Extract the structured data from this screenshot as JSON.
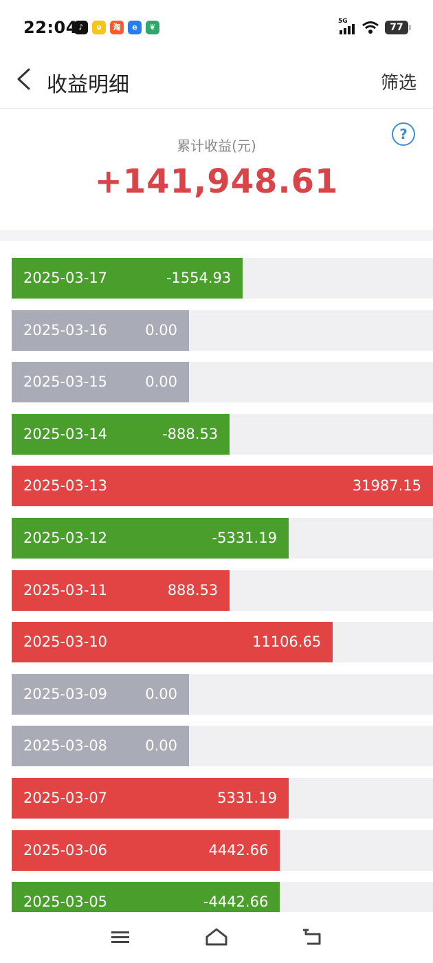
{
  "status_bar": {
    "time": "22:04",
    "network": "5G",
    "battery": "77",
    "app_icons": [
      {
        "name": "tiktok-icon",
        "color": "#111111",
        "glyph": "♪"
      },
      {
        "name": "bunny-app-icon",
        "color": "#f5c518",
        "glyph": "ʋ"
      },
      {
        "name": "taobao-icon",
        "color": "#ff5a2e",
        "glyph": "淘"
      },
      {
        "name": "browser-icon",
        "color": "#2a7df0",
        "glyph": "e"
      },
      {
        "name": "green-app-icon",
        "color": "#2fa86a",
        "glyph": "❦"
      }
    ]
  },
  "header": {
    "title": "收益明细",
    "filter_label": "筛选"
  },
  "summary": {
    "label": "累计收益(元)",
    "value": "+141,948.61",
    "help_symbol": "?"
  },
  "colors": {
    "gain": "#e24444",
    "loss": "#4a9e2c",
    "zero": "#a9abb6",
    "track": "#f0f0f3",
    "total": "#d84448"
  },
  "chart_data": {
    "type": "bar",
    "orientation": "horizontal",
    "categories": [
      "2025-03-17",
      "2025-03-16",
      "2025-03-15",
      "2025-03-14",
      "2025-03-13",
      "2025-03-12",
      "2025-03-11",
      "2025-03-10",
      "2025-03-09",
      "2025-03-08",
      "2025-03-07",
      "2025-03-06",
      "2025-03-05"
    ],
    "values": [
      -1554.93,
      0.0,
      0.0,
      -888.53,
      31987.15,
      -5331.19,
      888.53,
      11106.65,
      0.0,
      0.0,
      5331.19,
      4442.66,
      -4442.66
    ],
    "labels": [
      "-1554.93",
      "0.00",
      "0.00",
      "-888.53",
      "31987.15",
      "-5331.19",
      "888.53",
      "11106.65",
      "0.00",
      "0.00",
      "5331.19",
      "4442.66",
      "-4442.66"
    ]
  }
}
